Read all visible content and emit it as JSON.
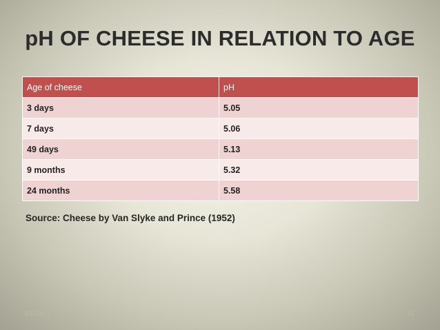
{
  "title": "pH OF CHEESE IN RELATION TO AGE",
  "table": {
    "headers": [
      "Age of cheese",
      "pH"
    ],
    "rows": [
      {
        "age": "3 days",
        "ph": "5.05"
      },
      {
        "age": "7 days",
        "ph": "5.06"
      },
      {
        "age": "49 days",
        "ph": "5.13"
      },
      {
        "age": "9 months",
        "ph": "5.32"
      },
      {
        "age": "24 months",
        "ph": "5.58"
      }
    ]
  },
  "source": "Source: Cheese by Van Slyke and Prince (1952)",
  "footer": {
    "date": "1/1/2017",
    "page": "11"
  },
  "colors": {
    "header_fill": "#c0504d",
    "row_odd": "#efd3d2",
    "row_even": "#f7eae9"
  }
}
